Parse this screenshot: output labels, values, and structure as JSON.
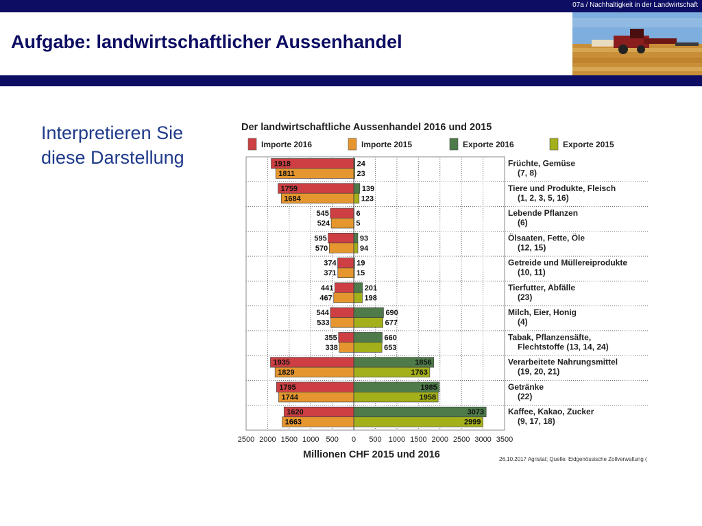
{
  "header": {
    "code": "07a / Nachhaltigkeit in der Landwirtschaft",
    "title": "Aufgabe: landwirtschaftlicher Aussenhandel"
  },
  "prompt": {
    "line1": "Interpretieren Sie",
    "line2": "diese Darstellung"
  },
  "colors": {
    "bar": "#0d0d63",
    "title": "#0d0d63",
    "prompt": "#1f3a8a",
    "importe_2016": "#cd3f42",
    "importe_2015": "#e6962e",
    "exporte_2016": "#4e7b49",
    "exporte_2015": "#a3b019"
  },
  "chart_data": {
    "type": "bar",
    "orientation": "horizontal-diverging",
    "title": "Der landwirtschaftliche Aussenhandel 2016 und 2015",
    "xlabel": "Millionen CHF 2015 und 2016",
    "xlim": [
      -2500,
      3500
    ],
    "xticks": [
      -2500,
      -2000,
      -1500,
      -1000,
      -500,
      0,
      500,
      1000,
      1500,
      2000,
      2500,
      3000,
      3500
    ],
    "xtick_labels": [
      "2500",
      "2000",
      "1500",
      "1000",
      "500",
      "0",
      "500",
      "1000",
      "1500",
      "2000",
      "2500",
      "3000",
      "3500"
    ],
    "legend_position": "top",
    "grid": true,
    "source": "26.10.2017 Agristat; Quelle: Eidgenössische Zollverwaltung (",
    "series": [
      {
        "name": "Importe 2016",
        "color": "#cd3f42"
      },
      {
        "name": "Importe 2015",
        "color": "#e6962e"
      },
      {
        "name": "Exporte 2016",
        "color": "#4e7b49"
      },
      {
        "name": "Exporte 2015",
        "color": "#a3b019"
      }
    ],
    "categories": [
      {
        "label": [
          "Früchte, Gemüse",
          "(7, 8)"
        ],
        "imp2016": 1918,
        "imp2015": 1811,
        "exp2016": 24,
        "exp2015": 23
      },
      {
        "label": [
          "Tiere und Produkte, Fleisch",
          "(1, 2, 3, 5, 16)"
        ],
        "imp2016": 1759,
        "imp2015": 1684,
        "exp2016": 139,
        "exp2015": 123
      },
      {
        "label": [
          "Lebende Pflanzen",
          "(6)"
        ],
        "imp2016": 545,
        "imp2015": 524,
        "exp2016": 6,
        "exp2015": 5
      },
      {
        "label": [
          "Ölsaaten, Fette, Öle",
          "(12, 15)"
        ],
        "imp2016": 595,
        "imp2015": 570,
        "exp2016": 93,
        "exp2015": 94
      },
      {
        "label": [
          "Getreide und Müllereiprodukte",
          "(10, 11)"
        ],
        "imp2016": 374,
        "imp2015": 371,
        "exp2016": 19,
        "exp2015": 15
      },
      {
        "label": [
          "Tierfutter, Abfälle",
          "(23)"
        ],
        "imp2016": 441,
        "imp2015": 467,
        "exp2016": 201,
        "exp2015": 198
      },
      {
        "label": [
          "Milch, Eier, Honig",
          "(4)"
        ],
        "imp2016": 544,
        "imp2015": 533,
        "exp2016": 690,
        "exp2015": 677
      },
      {
        "label": [
          "Tabak, Pflanzensäfte,",
          "Flechtstoffe (13, 14, 24)"
        ],
        "imp2016": 355,
        "imp2015": 338,
        "exp2016": 660,
        "exp2015": 653
      },
      {
        "label": [
          "Verarbeitete Nahrungsmittel",
          "(19, 20, 21)"
        ],
        "imp2016": 1935,
        "imp2015": 1829,
        "exp2016": 1856,
        "exp2015": 1763
      },
      {
        "label": [
          "Getränke",
          "(22)"
        ],
        "imp2016": 1795,
        "imp2015": 1744,
        "exp2016": 1985,
        "exp2015": 1958
      },
      {
        "label": [
          "Kaffee, Kakao, Zucker",
          "(9, 17, 18)"
        ],
        "imp2016": 1620,
        "imp2015": 1663,
        "exp2016": 3073,
        "exp2015": 2999
      }
    ]
  }
}
